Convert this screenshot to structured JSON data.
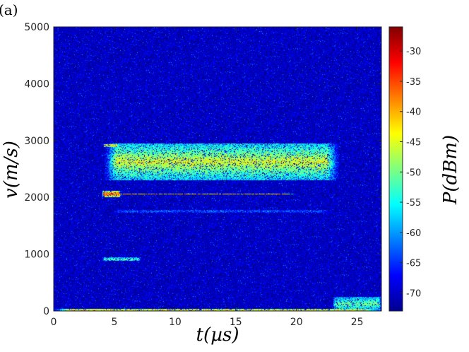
{
  "panel_label": "(a)",
  "chart_data": {
    "type": "heatmap",
    "title": "",
    "xlabel": "t(µs)",
    "ylabel": "v(m/s)",
    "colorbar_label": "P(dBm)",
    "xlim": [
      0,
      27
    ],
    "ylim": [
      0,
      5000
    ],
    "clim": [
      -73,
      -26
    ],
    "x_ticks": [
      0,
      5,
      10,
      15,
      20,
      25
    ],
    "y_ticks": [
      0,
      1000,
      2000,
      3000,
      4000,
      5000
    ],
    "colorbar_ticks": [
      -30,
      -35,
      -40,
      -45,
      -50,
      -55,
      -60,
      -65,
      -70
    ],
    "colormap": "jet",
    "background_level_dBm": -70,
    "features": [
      {
        "name": "main band",
        "t": [
          4.2,
          23.5
        ],
        "v": [
          2300,
          2950
        ],
        "peak_dBm": -45
      },
      {
        "name": "line",
        "t": [
          4.0,
          20.0
        ],
        "v": [
          2050,
          2070
        ],
        "peak_dBm": -40
      },
      {
        "name": "onset",
        "t": [
          4.0,
          5.5
        ],
        "v": [
          2000,
          2120
        ],
        "peak_dBm": -33
      },
      {
        "name": "onset",
        "t": [
          4.1,
          5.3
        ],
        "v": [
          2880,
          2940
        ],
        "peak_dBm": -38
      },
      {
        "name": "line",
        "t": [
          4.0,
          7.2
        ],
        "v": [
          880,
          940
        ],
        "peak_dBm": -50
      },
      {
        "name": "line",
        "t": [
          5.0,
          23.0
        ],
        "v": [
          1730,
          1780
        ],
        "peak_dBm": -63
      },
      {
        "name": "line",
        "t": [
          0,
          27
        ],
        "v": [
          0,
          40
        ],
        "peak_dBm": -40
      },
      {
        "name": "tail",
        "t": [
          23.0,
          27.0
        ],
        "v": [
          0,
          250
        ],
        "peak_dBm": -50
      }
    ]
  }
}
